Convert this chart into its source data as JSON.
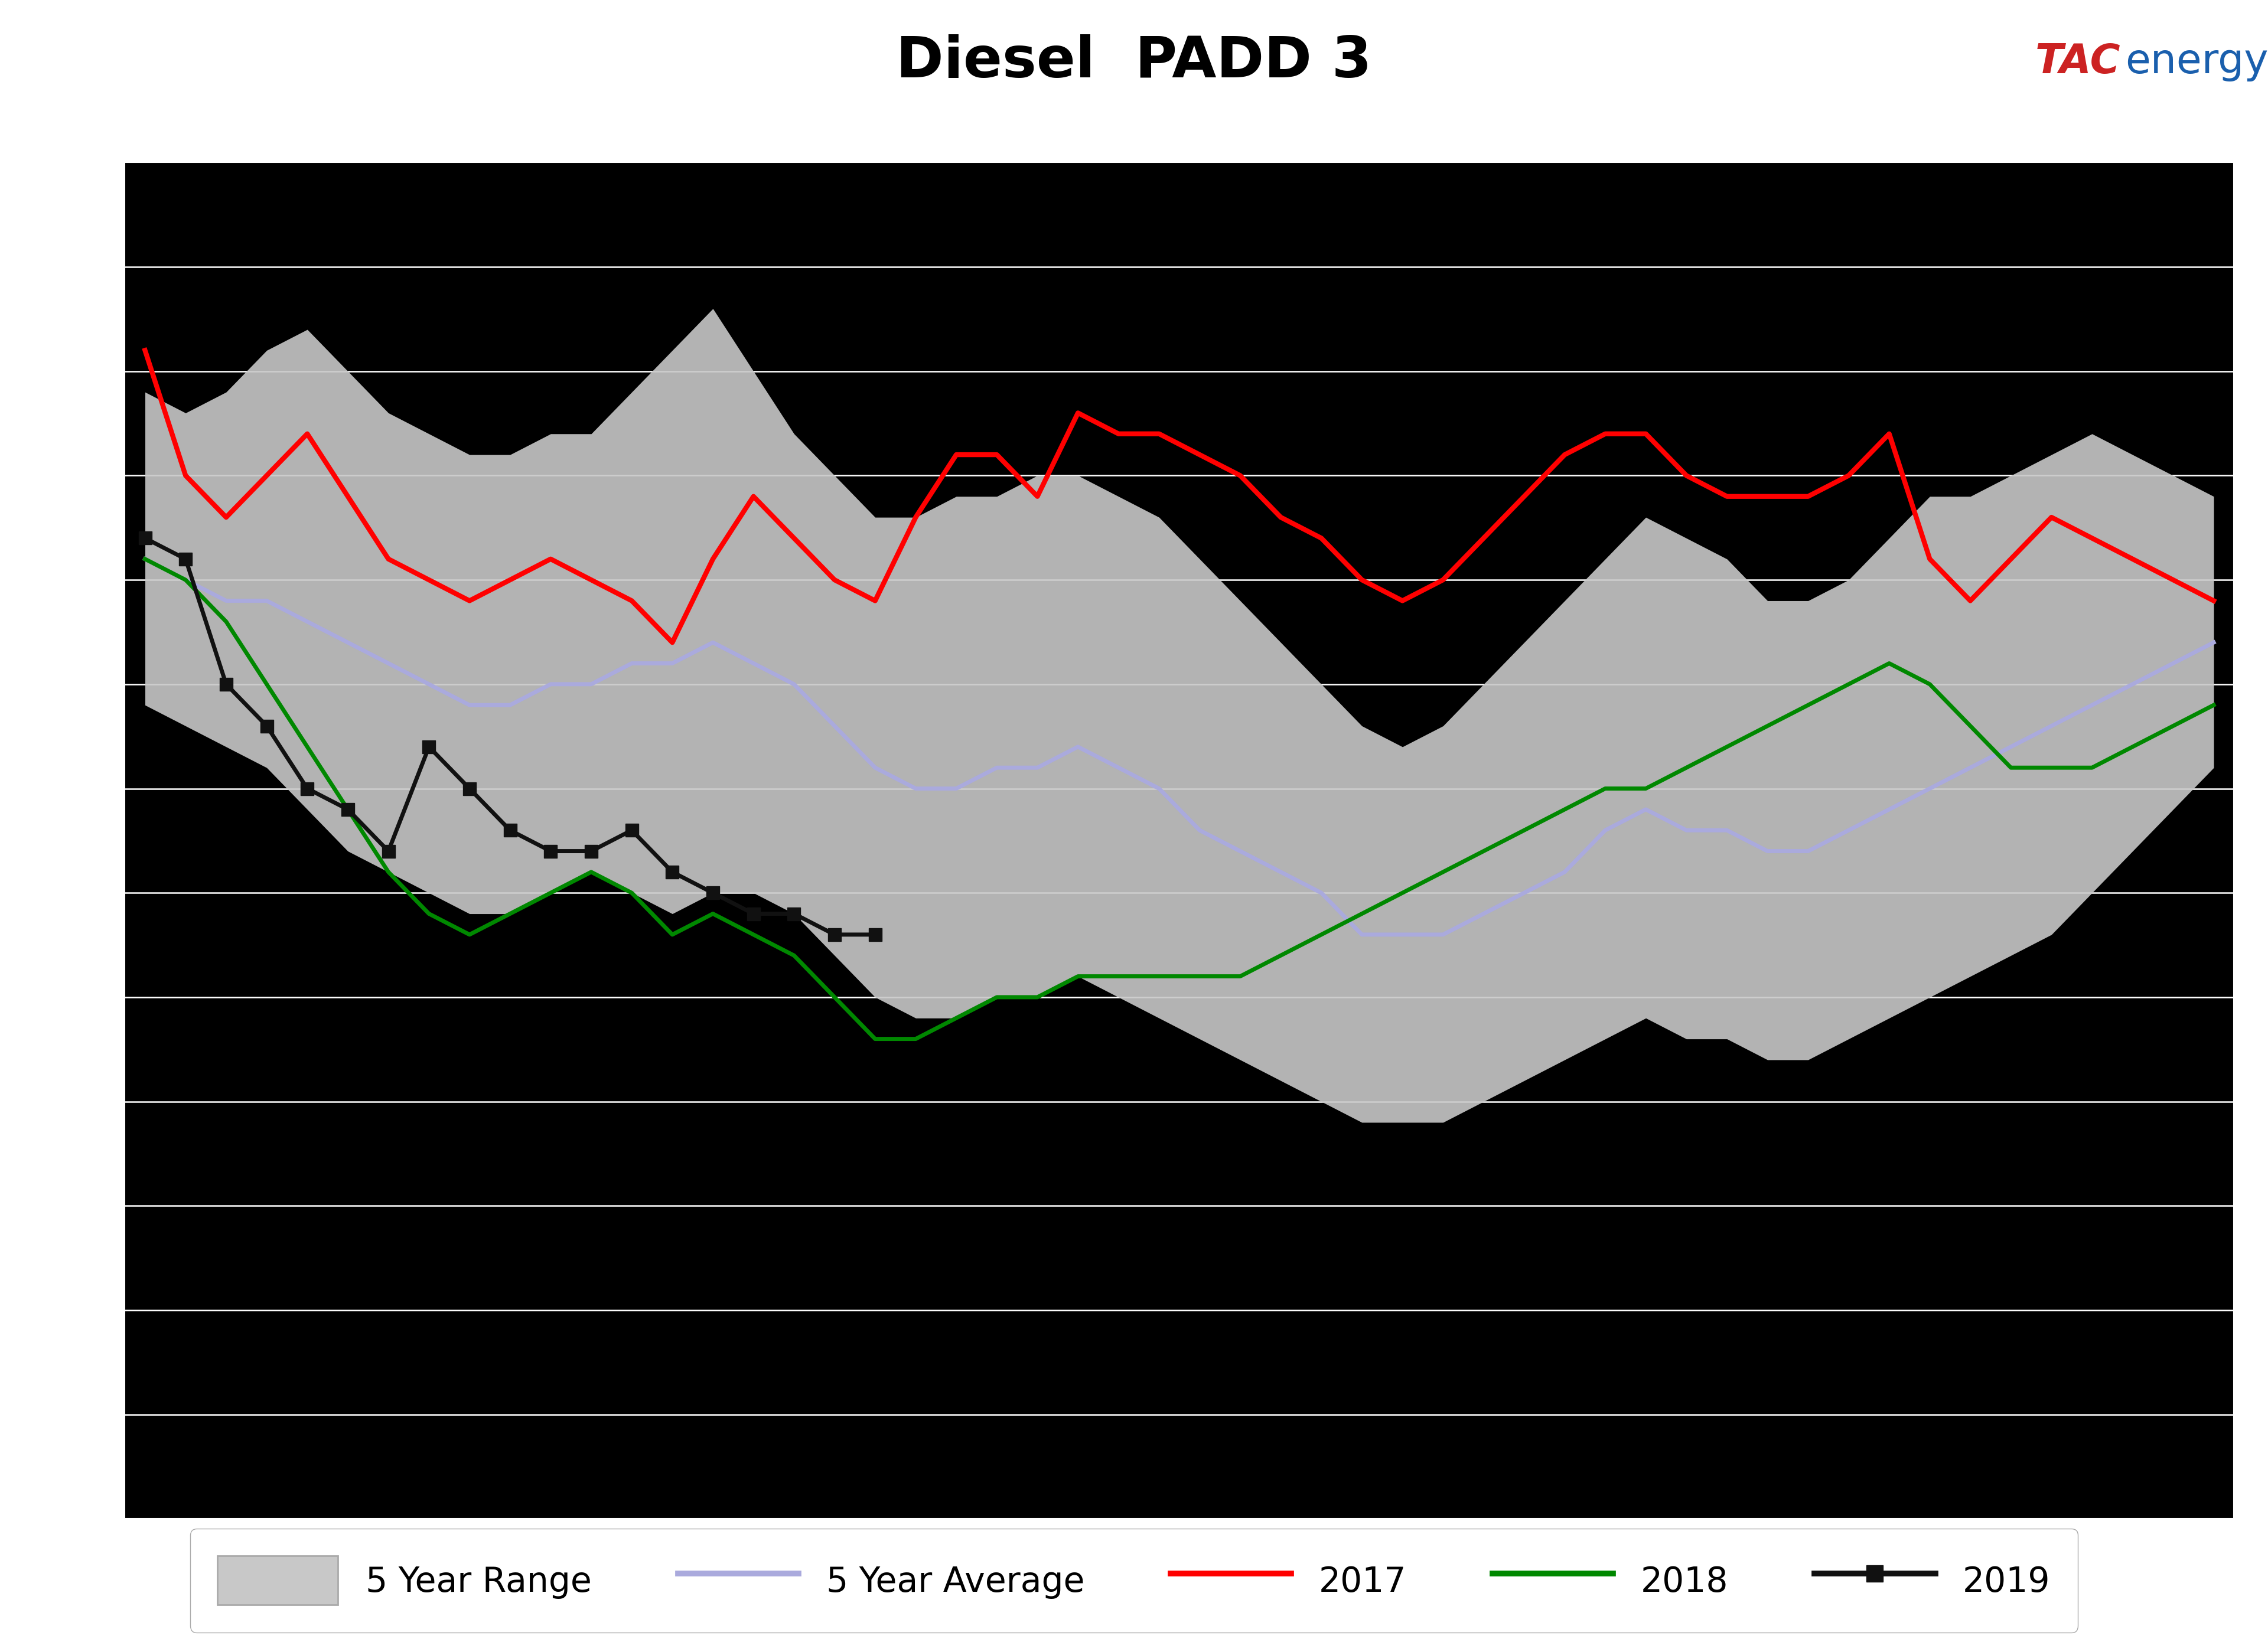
{
  "title": "Diesel  PADD 3",
  "title_fontsize": 70,
  "header_bg_color": "#b2b2b2",
  "blue_bar_color": "#1a5fad",
  "yellow_line_color": "#f5e100",
  "fig_bg_color": "#ffffff",
  "plot_bg_color": "#000000",
  "grid_color": "#ffffff",
  "range_fill_color": "#c8c8c8",
  "range_edge_color": "#aaaaaa",
  "avg_color": "#aaaadd",
  "line_2017_color": "#ff0000",
  "line_2018_color": "#008800",
  "line_2019_color": "#111111",
  "ylim": [
    0,
    65
  ],
  "ytick_values": [
    60,
    55,
    50,
    45,
    40,
    35,
    30,
    25,
    20,
    15,
    10,
    5
  ],
  "ytick_positions": [
    60,
    55,
    50,
    45,
    40,
    35,
    30,
    25,
    20,
    15,
    10,
    5
  ],
  "n_weeks": 52,
  "range_upper": [
    54,
    53,
    54,
    56,
    57,
    55,
    53,
    52,
    51,
    51,
    52,
    52,
    54,
    56,
    58,
    55,
    52,
    50,
    48,
    48,
    49,
    49,
    50,
    50,
    49,
    48,
    46,
    44,
    42,
    40,
    38,
    37,
    38,
    40,
    42,
    44,
    46,
    48,
    47,
    46,
    44,
    44,
    45,
    47,
    49,
    49,
    50,
    51,
    52,
    51,
    50,
    49
  ],
  "range_lower": [
    39,
    38,
    37,
    36,
    34,
    32,
    31,
    30,
    29,
    29,
    30,
    31,
    30,
    29,
    30,
    30,
    29,
    27,
    25,
    24,
    24,
    25,
    25,
    26,
    25,
    24,
    23,
    22,
    21,
    20,
    19,
    19,
    19,
    20,
    21,
    22,
    23,
    24,
    23,
    23,
    22,
    22,
    23,
    24,
    25,
    26,
    27,
    28,
    30,
    32,
    34,
    36
  ],
  "avg": [
    46,
    45,
    44,
    44,
    43,
    42,
    41,
    40,
    39,
    39,
    40,
    40,
    41,
    41,
    42,
    41,
    40,
    38,
    36,
    35,
    35,
    36,
    36,
    37,
    36,
    35,
    33,
    32,
    31,
    30,
    28,
    28,
    28,
    29,
    30,
    31,
    33,
    34,
    33,
    33,
    32,
    32,
    33,
    34,
    35,
    36,
    37,
    38,
    39,
    40,
    41,
    42
  ],
  "line_2017": [
    56,
    50,
    48,
    50,
    52,
    49,
    46,
    45,
    44,
    45,
    46,
    45,
    44,
    42,
    46,
    49,
    47,
    45,
    44,
    48,
    51,
    51,
    49,
    53,
    52,
    52,
    51,
    50,
    48,
    47,
    45,
    44,
    45,
    47,
    49,
    51,
    52,
    52,
    50,
    49,
    49,
    49,
    50,
    52,
    46,
    44,
    46,
    48,
    47,
    46,
    45,
    44
  ],
  "line_2018": [
    46,
    45,
    43,
    40,
    37,
    34,
    31,
    29,
    28,
    29,
    30,
    31,
    30,
    28,
    29,
    28,
    27,
    25,
    23,
    23,
    24,
    25,
    25,
    26,
    26,
    26,
    26,
    26,
    27,
    28,
    29,
    30,
    31,
    32,
    33,
    34,
    35,
    35,
    36,
    37,
    38,
    39,
    40,
    41,
    40,
    38,
    36,
    36,
    36,
    37,
    38,
    39
  ],
  "line_2019_x": [
    0,
    1,
    2,
    3,
    4,
    5,
    6,
    7,
    8,
    9,
    10,
    11,
    12,
    13,
    14,
    15,
    16,
    17,
    18
  ],
  "line_2019": [
    47,
    46,
    40,
    38,
    35,
    34,
    32,
    37,
    35,
    33,
    32,
    32,
    33,
    31,
    30,
    29,
    29,
    28,
    28
  ],
  "legend_labels": [
    "5 Year Range",
    "5 Year Average",
    "2017",
    "2018",
    "2019"
  ],
  "legend_fontsize": 42,
  "tick_fontsize": 32,
  "logo_tac_color": "#cc2222",
  "logo_energy_color": "#1a5fad",
  "logo_text_tac": "TAC",
  "logo_text_energy": "energy",
  "white_gridline_y": [
    60,
    55,
    50,
    45,
    40,
    35,
    30,
    25,
    20,
    15,
    10,
    5
  ]
}
